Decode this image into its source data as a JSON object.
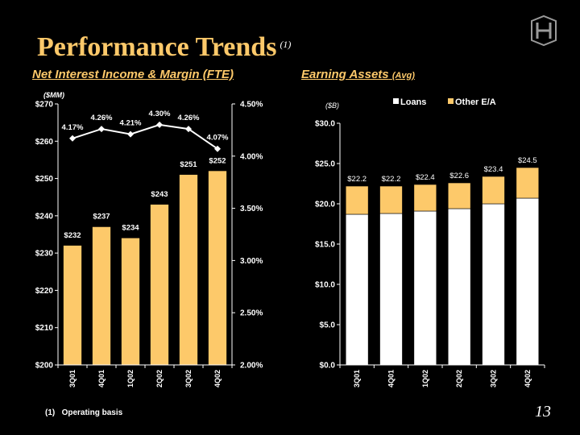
{
  "page": {
    "title": "Performance Trends",
    "title_note": "(1)",
    "left_subtitle": "Net Interest Income & Margin (FTE)",
    "right_subtitle": "Earning Assets",
    "right_subtitle_note": "(Avg)",
    "footnote_marker": "(1)",
    "footnote_text": "Operating basis",
    "page_number": "13"
  },
  "colors": {
    "background": "#000000",
    "title": "#FDC96A",
    "bar": "#FDC96A",
    "loans": "#FFFFFF",
    "line": "#FFFFFF"
  },
  "chart_data": [
    {
      "type": "bar",
      "unit_label": "($MM)",
      "categories": [
        "3Q01",
        "4Q01",
        "1Q02",
        "2Q02",
        "3Q02",
        "4Q02"
      ],
      "series": [
        {
          "values": [
            232,
            237,
            234,
            243,
            251,
            252
          ],
          "labels": [
            "$232",
            "$237",
            "$234",
            "$243",
            "$251",
            "$252"
          ]
        }
      ],
      "ylim": [
        200,
        270
      ],
      "yticks": [
        "$200",
        "$210",
        "$220",
        "$230",
        "$240",
        "$250",
        "$260",
        "$270"
      ],
      "secondary_series": {
        "type": "line",
        "values": [
          4.17,
          4.26,
          4.21,
          4.3,
          4.26,
          4.07
        ],
        "labels": [
          "4.17%",
          "4.26%",
          "4.21%",
          "4.30%",
          "4.26%",
          "4.07%"
        ]
      },
      "y2lim": [
        2.0,
        4.5
      ],
      "y2ticks": [
        "2.00%",
        "2.50%",
        "3.00%",
        "3.50%",
        "4.00%",
        "4.50%"
      ]
    },
    {
      "type": "bar",
      "unit_label": "($B)",
      "categories": [
        "3Q01",
        "4Q01",
        "1Q02",
        "2Q02",
        "3Q02",
        "4Q02"
      ],
      "series": [
        {
          "name": "Loans",
          "values": [
            18.7,
            18.8,
            19.1,
            19.4,
            20.0,
            20.7
          ]
        },
        {
          "name": "Other E/A",
          "values": [
            3.5,
            3.4,
            3.3,
            3.2,
            3.4,
            3.8
          ]
        }
      ],
      "totals": [
        "$22.2",
        "$22.2",
        "$22.4",
        "$22.6",
        "$23.4",
        "$24.5"
      ],
      "ylim": [
        0,
        30
      ],
      "yticks": [
        "$0.0",
        "$5.0",
        "$10.0",
        "$15.0",
        "$20.0",
        "$25.0",
        "$30.0"
      ],
      "legend_position": "top"
    }
  ]
}
